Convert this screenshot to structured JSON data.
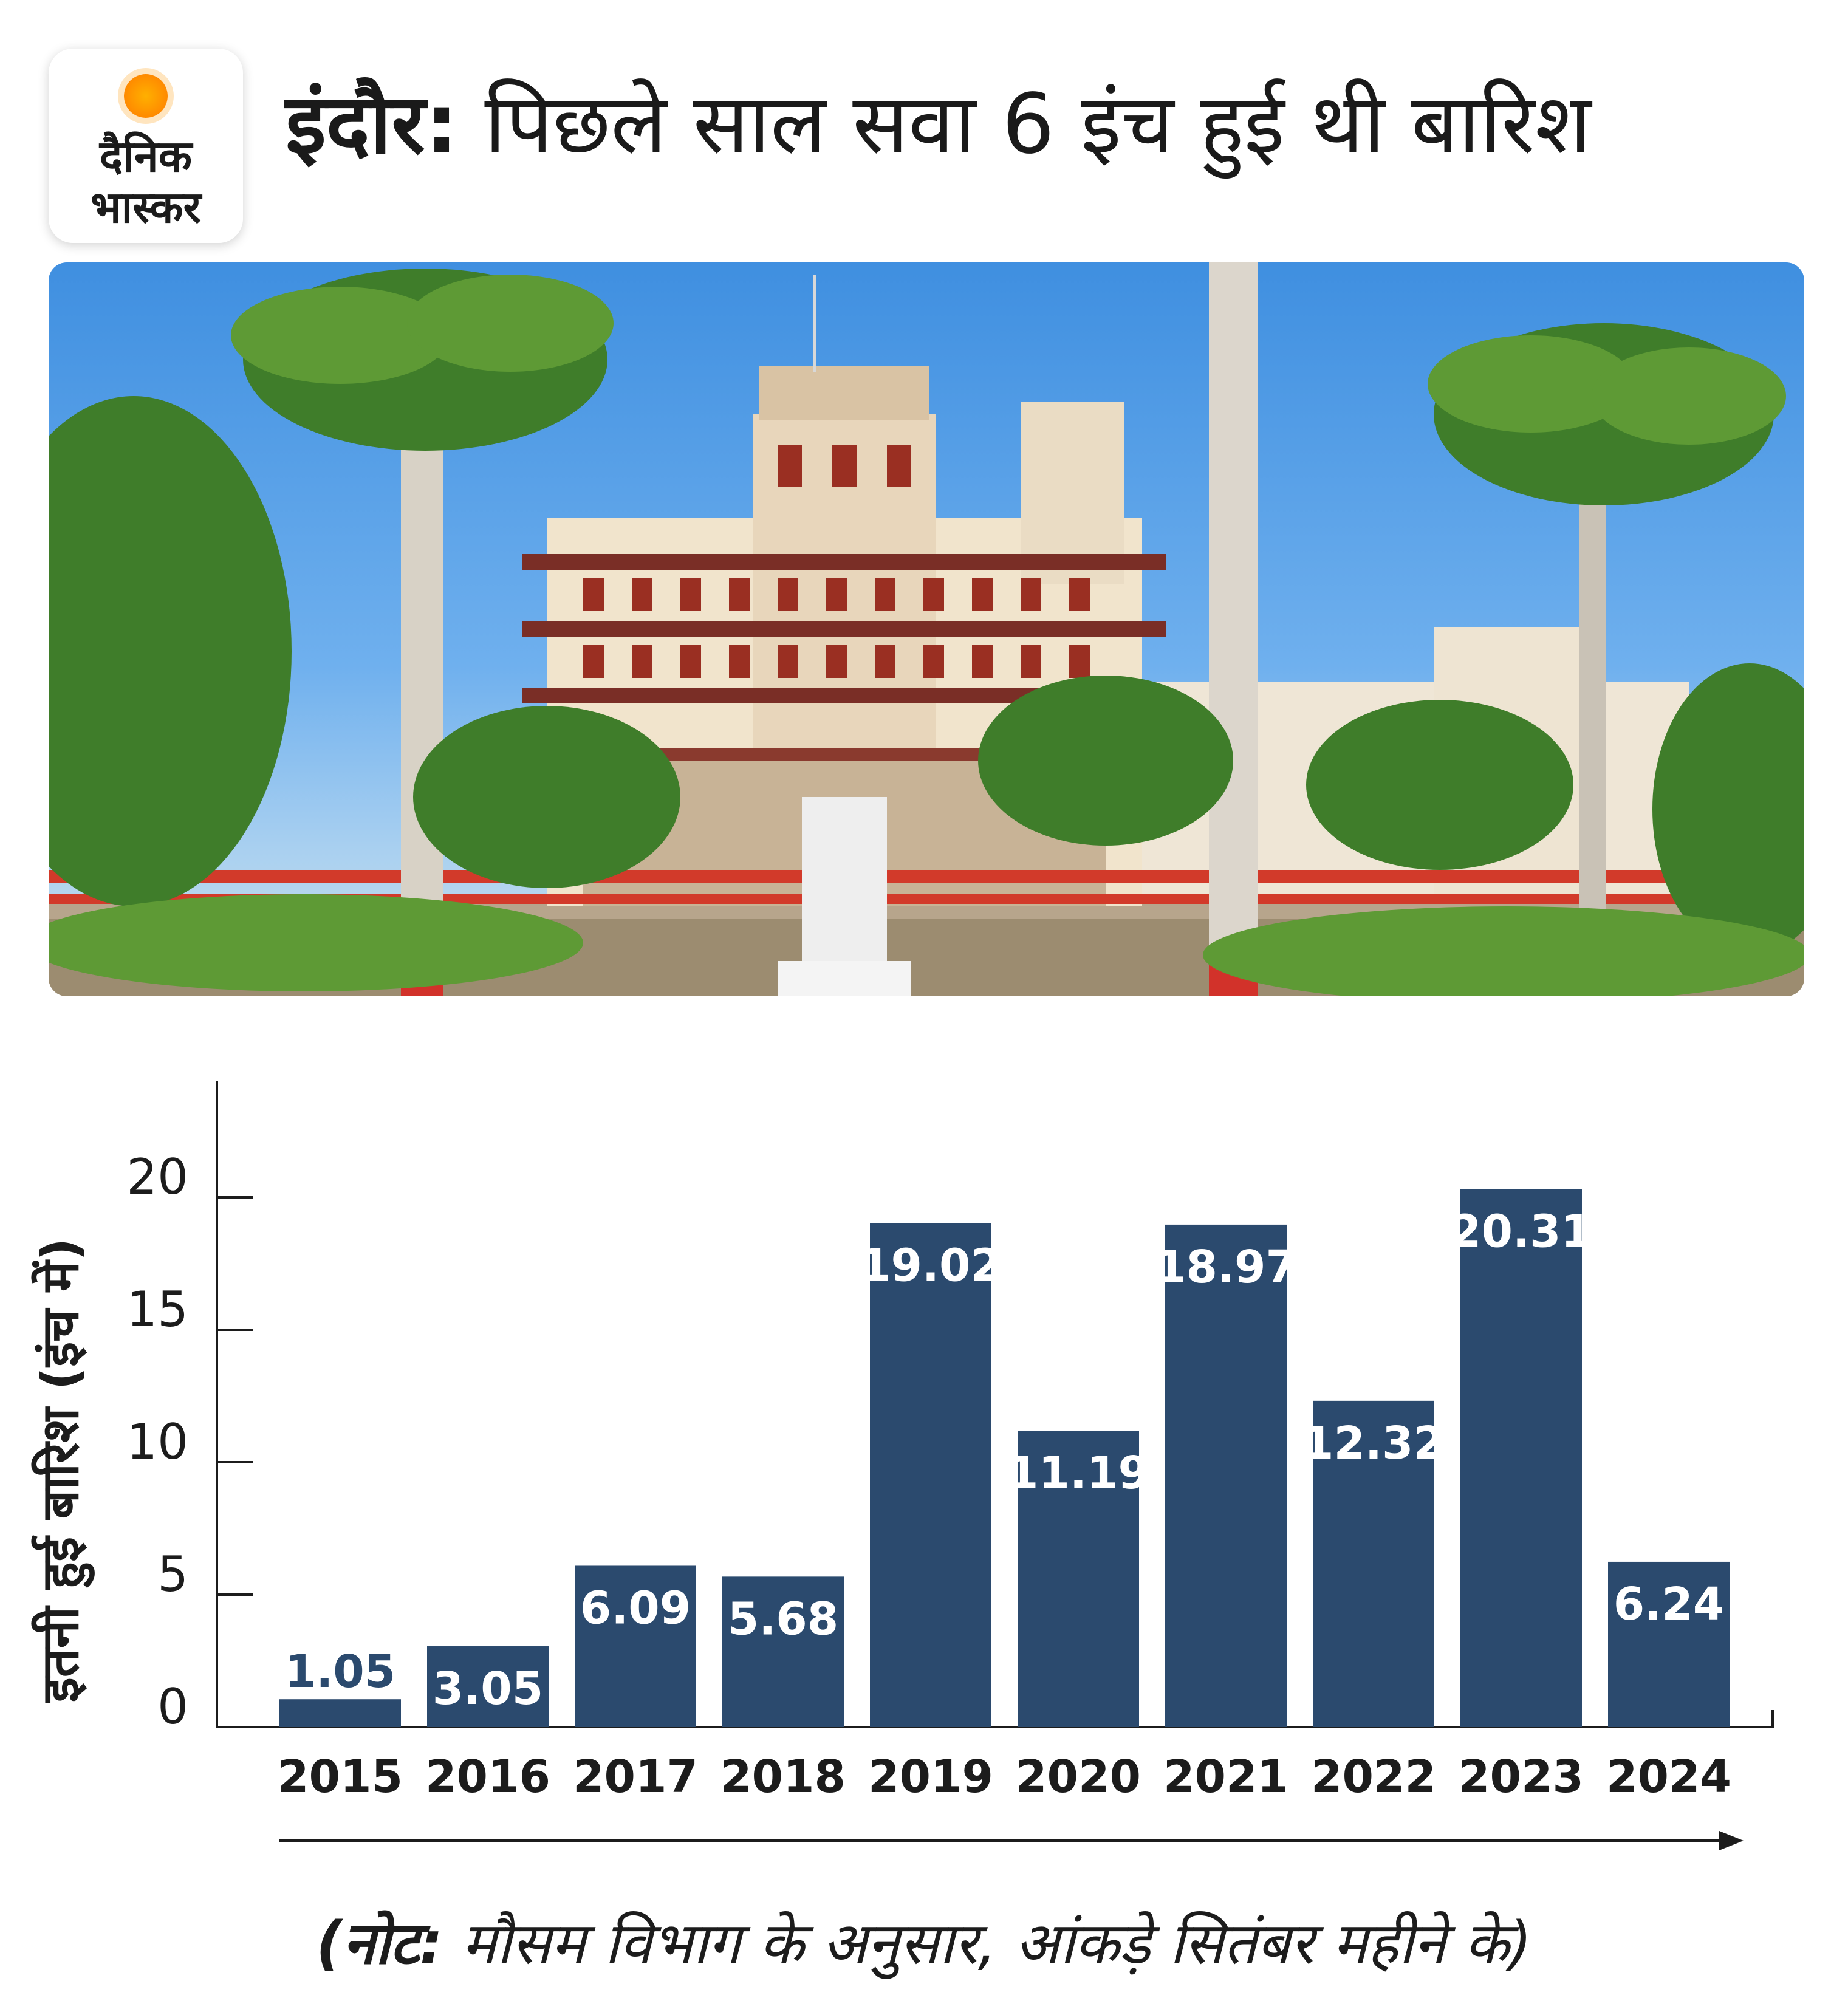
{
  "brand": {
    "line1": "दैनिक",
    "line2": "भास्कर"
  },
  "header": {
    "city": "इंदौर:",
    "subtitle": "पिछले साल सवा 6 इंच हुई थी बारिश"
  },
  "colors": {
    "bar": "#2b4a6e",
    "label": "#ffffff",
    "axis": "#1c1c1c",
    "sun": "#ff9500"
  },
  "chart_data": {
    "type": "bar",
    "title": "",
    "xlabel": "",
    "ylabel": "इतनी हुई बारिश (इंच में)",
    "categories": [
      "2015",
      "2016",
      "2017",
      "2018",
      "2019",
      "2020",
      "2021",
      "2022",
      "2023",
      "2024"
    ],
    "values": [
      1.05,
      3.05,
      6.09,
      5.68,
      19.02,
      11.19,
      18.97,
      12.32,
      20.31,
      6.24
    ],
    "value_labels": [
      "1.05",
      "3.05",
      "6.09",
      "5.68",
      "19.02",
      "11.19",
      "18.97",
      "12.32",
      "20.31",
      "6.24"
    ],
    "yticks": [
      0,
      5,
      10,
      15,
      20
    ],
    "ylim": [
      0,
      24.5
    ],
    "grid": false
  },
  "note": {
    "prefix": "(नोट:",
    "text": "मौसम विभाग के अनुसार, आंकड़े सितंबर महीने के)"
  }
}
